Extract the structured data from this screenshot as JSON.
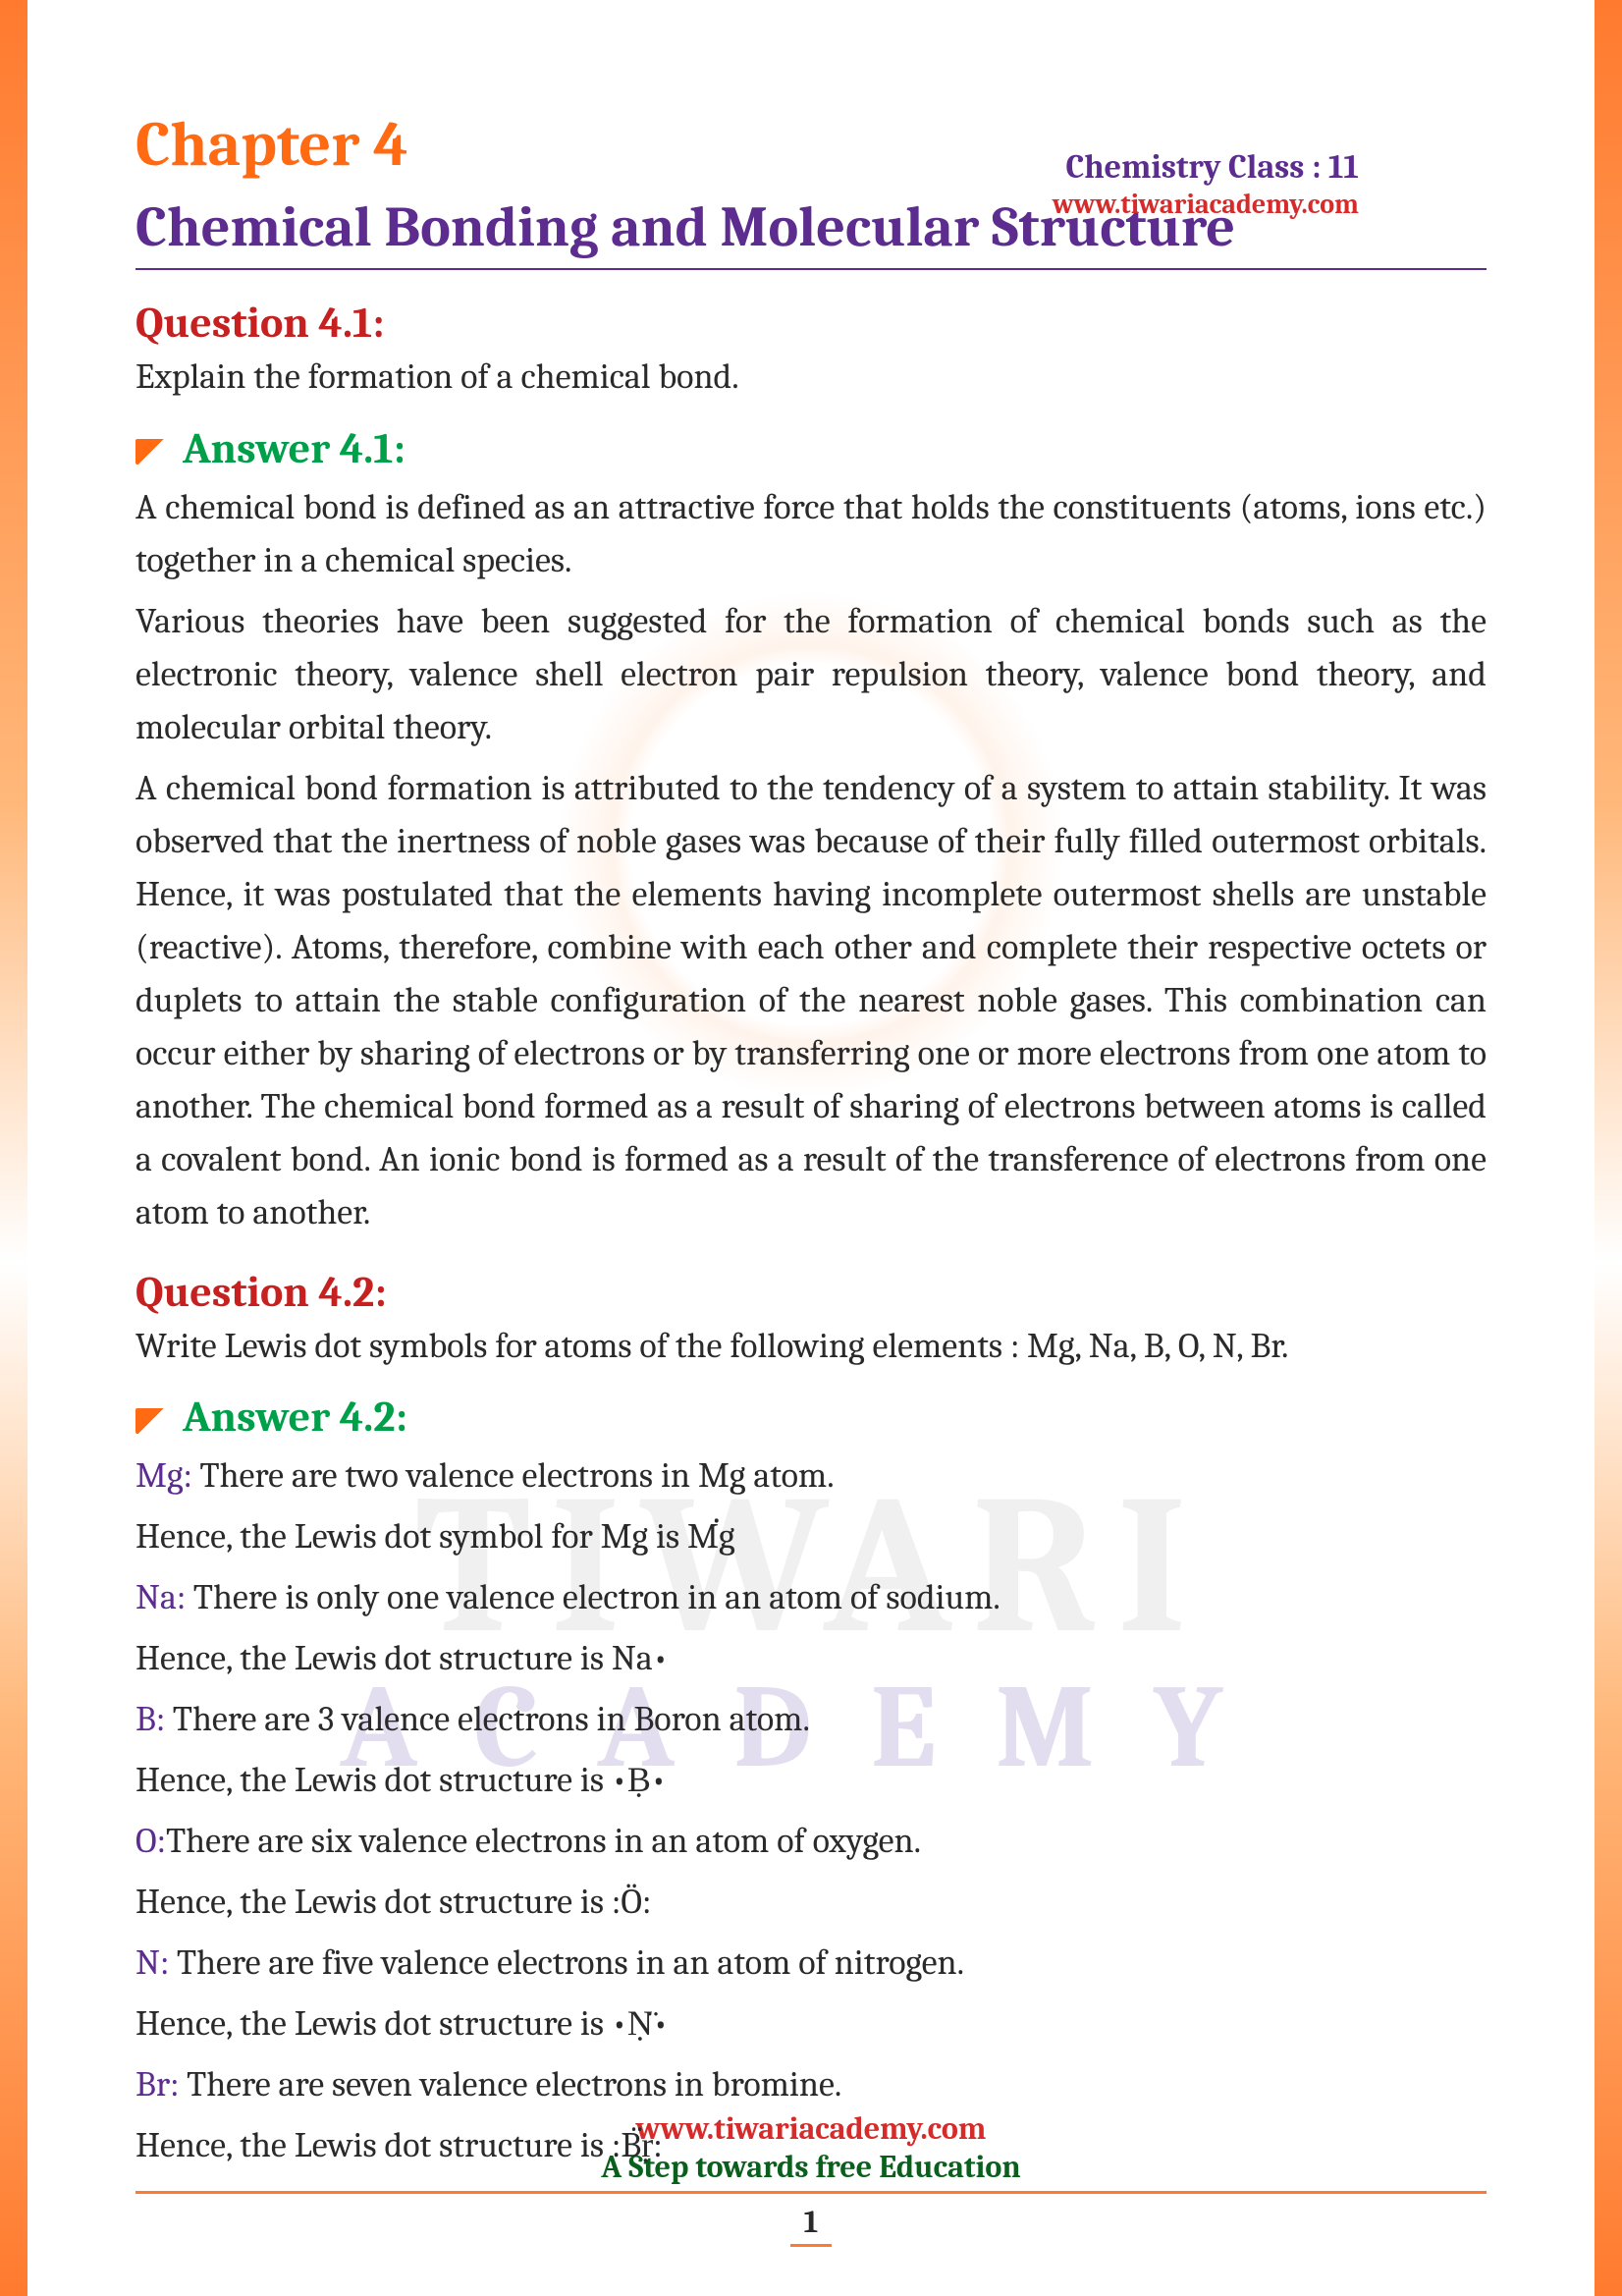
{
  "colors": {
    "border_gradient_top": "#ff7a2e",
    "border_gradient_mid": "#ffb87a",
    "heading_orange": "#ff6a13",
    "heading_purple": "#5c2d8f",
    "question_red": "#c62020",
    "answer_green": "#00a04a",
    "body_text": "#2a2a2a",
    "url_red": "#d62b2b",
    "footer_green": "#0a5f1d"
  },
  "typography": {
    "chapter_label_size": 64,
    "chapter_title_size": 58,
    "question_heading_size": 44,
    "answer_heading_size": 44,
    "body_size": 36,
    "header_class_size": 34,
    "header_url_size": 28,
    "footer_size": 32
  },
  "header": {
    "class_label": "Chemistry Class : 11",
    "url": "www.tiwariacademy.com"
  },
  "chapter": {
    "label": "Chapter  4",
    "title": "Chemical Bonding and Molecular Structure"
  },
  "q1": {
    "heading": "Question 4.1:",
    "text": "Explain the formation of a chemical bond.",
    "answer_heading": "Answer 4.1:",
    "p1": "A chemical bond is defined as an attractive force that holds the constituents (atoms, ions etc.) together in a chemical species.",
    "p2": "Various theories have been suggested for the formation of chemical bonds such as the electronic theory, valence shell electron pair repulsion theory, valence bond theory, and molecular orbital theory.",
    "p3": "A chemical bond formation is attributed to the tendency of a system to attain stability. It was observed that the inertness of noble gases was because of their fully filled outermost orbitals. Hence, it was postulated that the elements having incomplete outermost shells are unstable (reactive). Atoms, therefore, combine with each other and complete their respective octets or duplets to attain the stable configuration of the nearest noble gases. This combination can occur either by sharing of electrons or by transferring one or more electrons from one atom to another. The chemical bond formed as a result of sharing of electrons between atoms is called a covalent bond. An ionic bond is formed as a result of the transference of electrons from one atom to another."
  },
  "q2": {
    "heading": "Question 4.2:",
    "text": "Write Lewis dot symbols for atoms of the following elements : Mg, Na, B, O, N, Br.",
    "answer_heading": "Answer 4.2:",
    "elements": [
      {
        "sym": "Mg:",
        "desc": " There are two valence electrons in Mg atom.",
        "line2": "Hence, the Lewis dot symbol for Mg is ",
        "lewis": "Ṁ̇g"
      },
      {
        "sym": "Na:",
        "desc": " There is only one valence electron in an atom of sodium.",
        "line2": "Hence, the Lewis dot structure is ",
        "lewis": "Na•"
      },
      {
        "sym": "B:",
        "desc": " There are 3 valence electrons in Boron atom.",
        "line2": "Hence, the Lewis dot structure is ",
        "lewis": "•Ḅ•"
      },
      {
        "sym": "O:",
        "desc": "There are six valence electrons in an atom of oxygen.",
        "line2": "Hence, the Lewis dot structure is ",
        "lewis": ":Ö:"
      },
      {
        "sym": "N:",
        "desc": " There are five valence electrons in an atom of nitrogen.",
        "line2": "Hence, the Lewis dot structure is ",
        "lewis": "•Ṇ̈•"
      },
      {
        "sym": "Br:",
        "desc": " There are seven valence electrons in bromine.",
        "line2": "Hence, the Lewis dot structure is ",
        "lewis": ":B̈ṛ:"
      }
    ]
  },
  "watermark": {
    "line1": "TIWARI",
    "line2": "ACADEMY"
  },
  "footer": {
    "url": "www.tiwariacademy.com",
    "tagline": "A Step towards free Education",
    "page": "1"
  }
}
